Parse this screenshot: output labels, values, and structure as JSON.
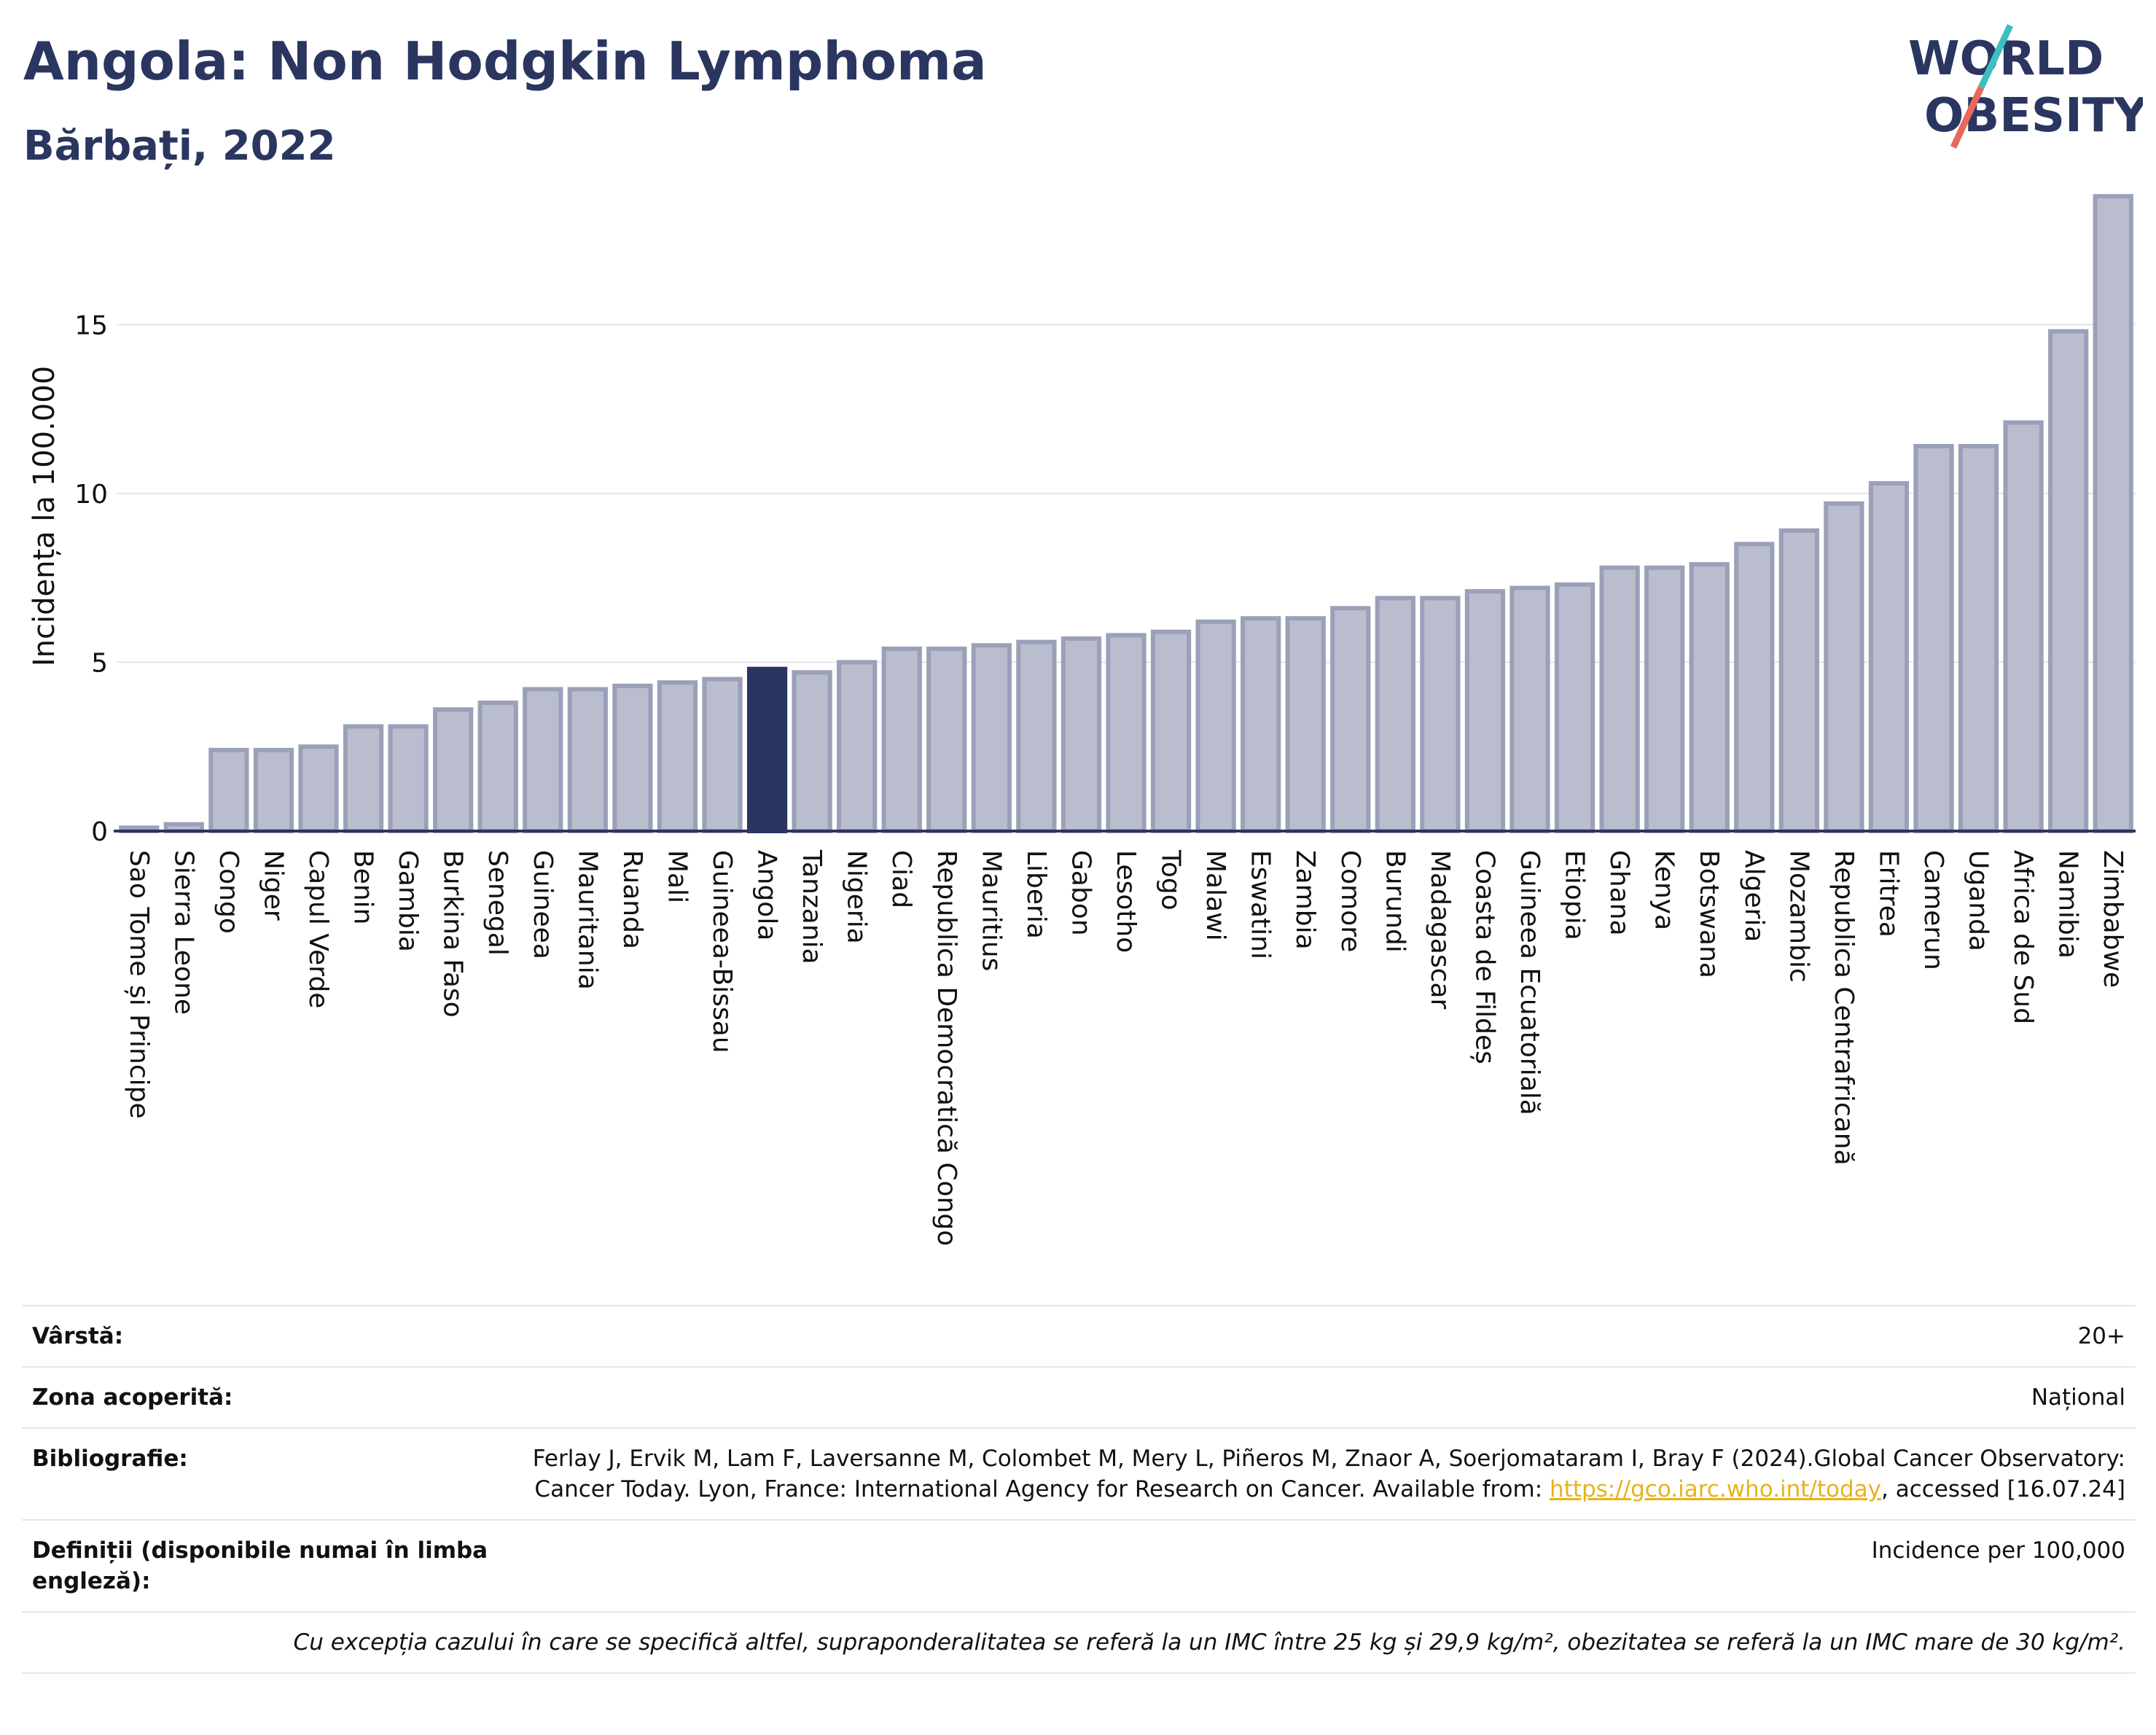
{
  "header": {
    "title": "Angola: Non Hodgkin Lymphoma",
    "subtitle": "Bărbați, 2022"
  },
  "logo": {
    "line1": "WORLD",
    "line2": "OBESITY",
    "accent_colors": [
      "#3cbfbf",
      "#e8685a"
    ]
  },
  "chart_data": {
    "type": "bar",
    "ylabel": "Incidența la 100.000",
    "ylim": [
      0,
      19
    ],
    "yticks": [
      0,
      5,
      10,
      15
    ],
    "grid": true,
    "highlight": "Angola",
    "colors": {
      "bar": "#b9bdcd",
      "bar_edge": "#9aa0b8",
      "highlight": "#2a3660"
    },
    "categories": [
      "Sao Tome și Principe",
      "Sierra Leone",
      "Congo",
      "Niger",
      "Capul Verde",
      "Benin",
      "Gambia",
      "Burkina Faso",
      "Senegal",
      "Guineea",
      "Mauritania",
      "Ruanda",
      "Mali",
      "Guineea-Bissau",
      "Angola",
      "Tanzania",
      "Nigeria",
      "Ciad",
      "Republica Democratică Congo",
      "Mauritius",
      "Liberia",
      "Gabon",
      "Lesotho",
      "Togo",
      "Malawi",
      "Eswatini",
      "Zambia",
      "Comore",
      "Burundi",
      "Madagascar",
      "Coasta de Fildeș",
      "Guineea Ecuatorială",
      "Etiopia",
      "Ghana",
      "Kenya",
      "Botswana",
      "Algeria",
      "Mozambic",
      "Republica Centrafricană",
      "Eritrea",
      "Camerun",
      "Uganda",
      "Africa de Sud",
      "Namibia",
      "Zimbabwe"
    ],
    "values": [
      0.1,
      0.2,
      2.4,
      2.4,
      2.5,
      3.1,
      3.1,
      3.6,
      3.8,
      4.2,
      4.2,
      4.3,
      4.4,
      4.5,
      4.8,
      4.7,
      5.0,
      5.4,
      5.4,
      5.5,
      5.6,
      5.7,
      5.8,
      5.9,
      6.2,
      6.3,
      6.3,
      6.6,
      6.9,
      6.9,
      7.1,
      7.2,
      7.3,
      7.8,
      7.8,
      7.9,
      8.5,
      8.9,
      9.7,
      10.3,
      11.4,
      11.4,
      12.1,
      14.8,
      18.8
    ]
  },
  "info": {
    "rows": [
      {
        "label": "Vârstă:",
        "value": "20+"
      },
      {
        "label": "Zona acoperită:",
        "value": "Național"
      },
      {
        "label": "Bibliografie:",
        "value_pre": "Ferlay J, Ervik M, Lam F, Laversanne M, Colombet M, Mery L, Piñeros M, Znaor A, Soerjomataram I, Bray F (2024).Global Cancer Observatory: Cancer Today. Lyon, France: International Agency for Research on Cancer. Available from: ",
        "link": "https://gco.iarc.who.int/today",
        "value_post": ", accessed [16.07.24]"
      },
      {
        "label": "Definiții (disponibile numai în limba engleză):",
        "value": "Incidence per 100,000"
      }
    ],
    "note": "Cu excepția cazului în care se specifică altfel, supraponderalitatea se referă la un IMC între 25 kg și 29,9 kg/m², obezitatea se referă la un IMC mare de 30 kg/m²."
  }
}
